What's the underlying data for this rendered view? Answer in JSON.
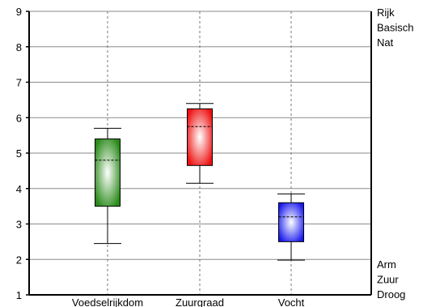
{
  "chart_data": {
    "type": "boxplot",
    "title": "",
    "xlabel": "",
    "ylabel": "",
    "ylim": [
      1,
      9
    ],
    "yticks": [
      "1",
      "2",
      "3",
      "4",
      "5",
      "6",
      "7",
      "8",
      "9"
    ],
    "categories": [
      "Voedselrijkdom",
      "Zuurgraad",
      "Vocht"
    ],
    "boxes": [
      {
        "category": "Voedselrijkdom",
        "whisker_low": 2.45,
        "q1": 3.5,
        "median": 4.8,
        "q3": 5.4,
        "whisker_high": 5.7,
        "color": "#2a8a1a"
      },
      {
        "category": "Zuurgraad",
        "whisker_low": 4.15,
        "q1": 4.65,
        "median": 5.75,
        "q3": 6.25,
        "whisker_high": 6.4,
        "color": "#ee1111"
      },
      {
        "category": "Vocht",
        "whisker_low": 1.98,
        "q1": 2.5,
        "median": 3.2,
        "q3": 3.6,
        "whisker_high": 3.85,
        "color": "#1a1aee"
      }
    ],
    "top_labels": [
      "Rijk",
      "Basisch",
      "Nat"
    ],
    "bottom_labels": [
      "Arm",
      "Zuur",
      "Droog"
    ],
    "grid": "horizontal solid, vertical dashed"
  }
}
